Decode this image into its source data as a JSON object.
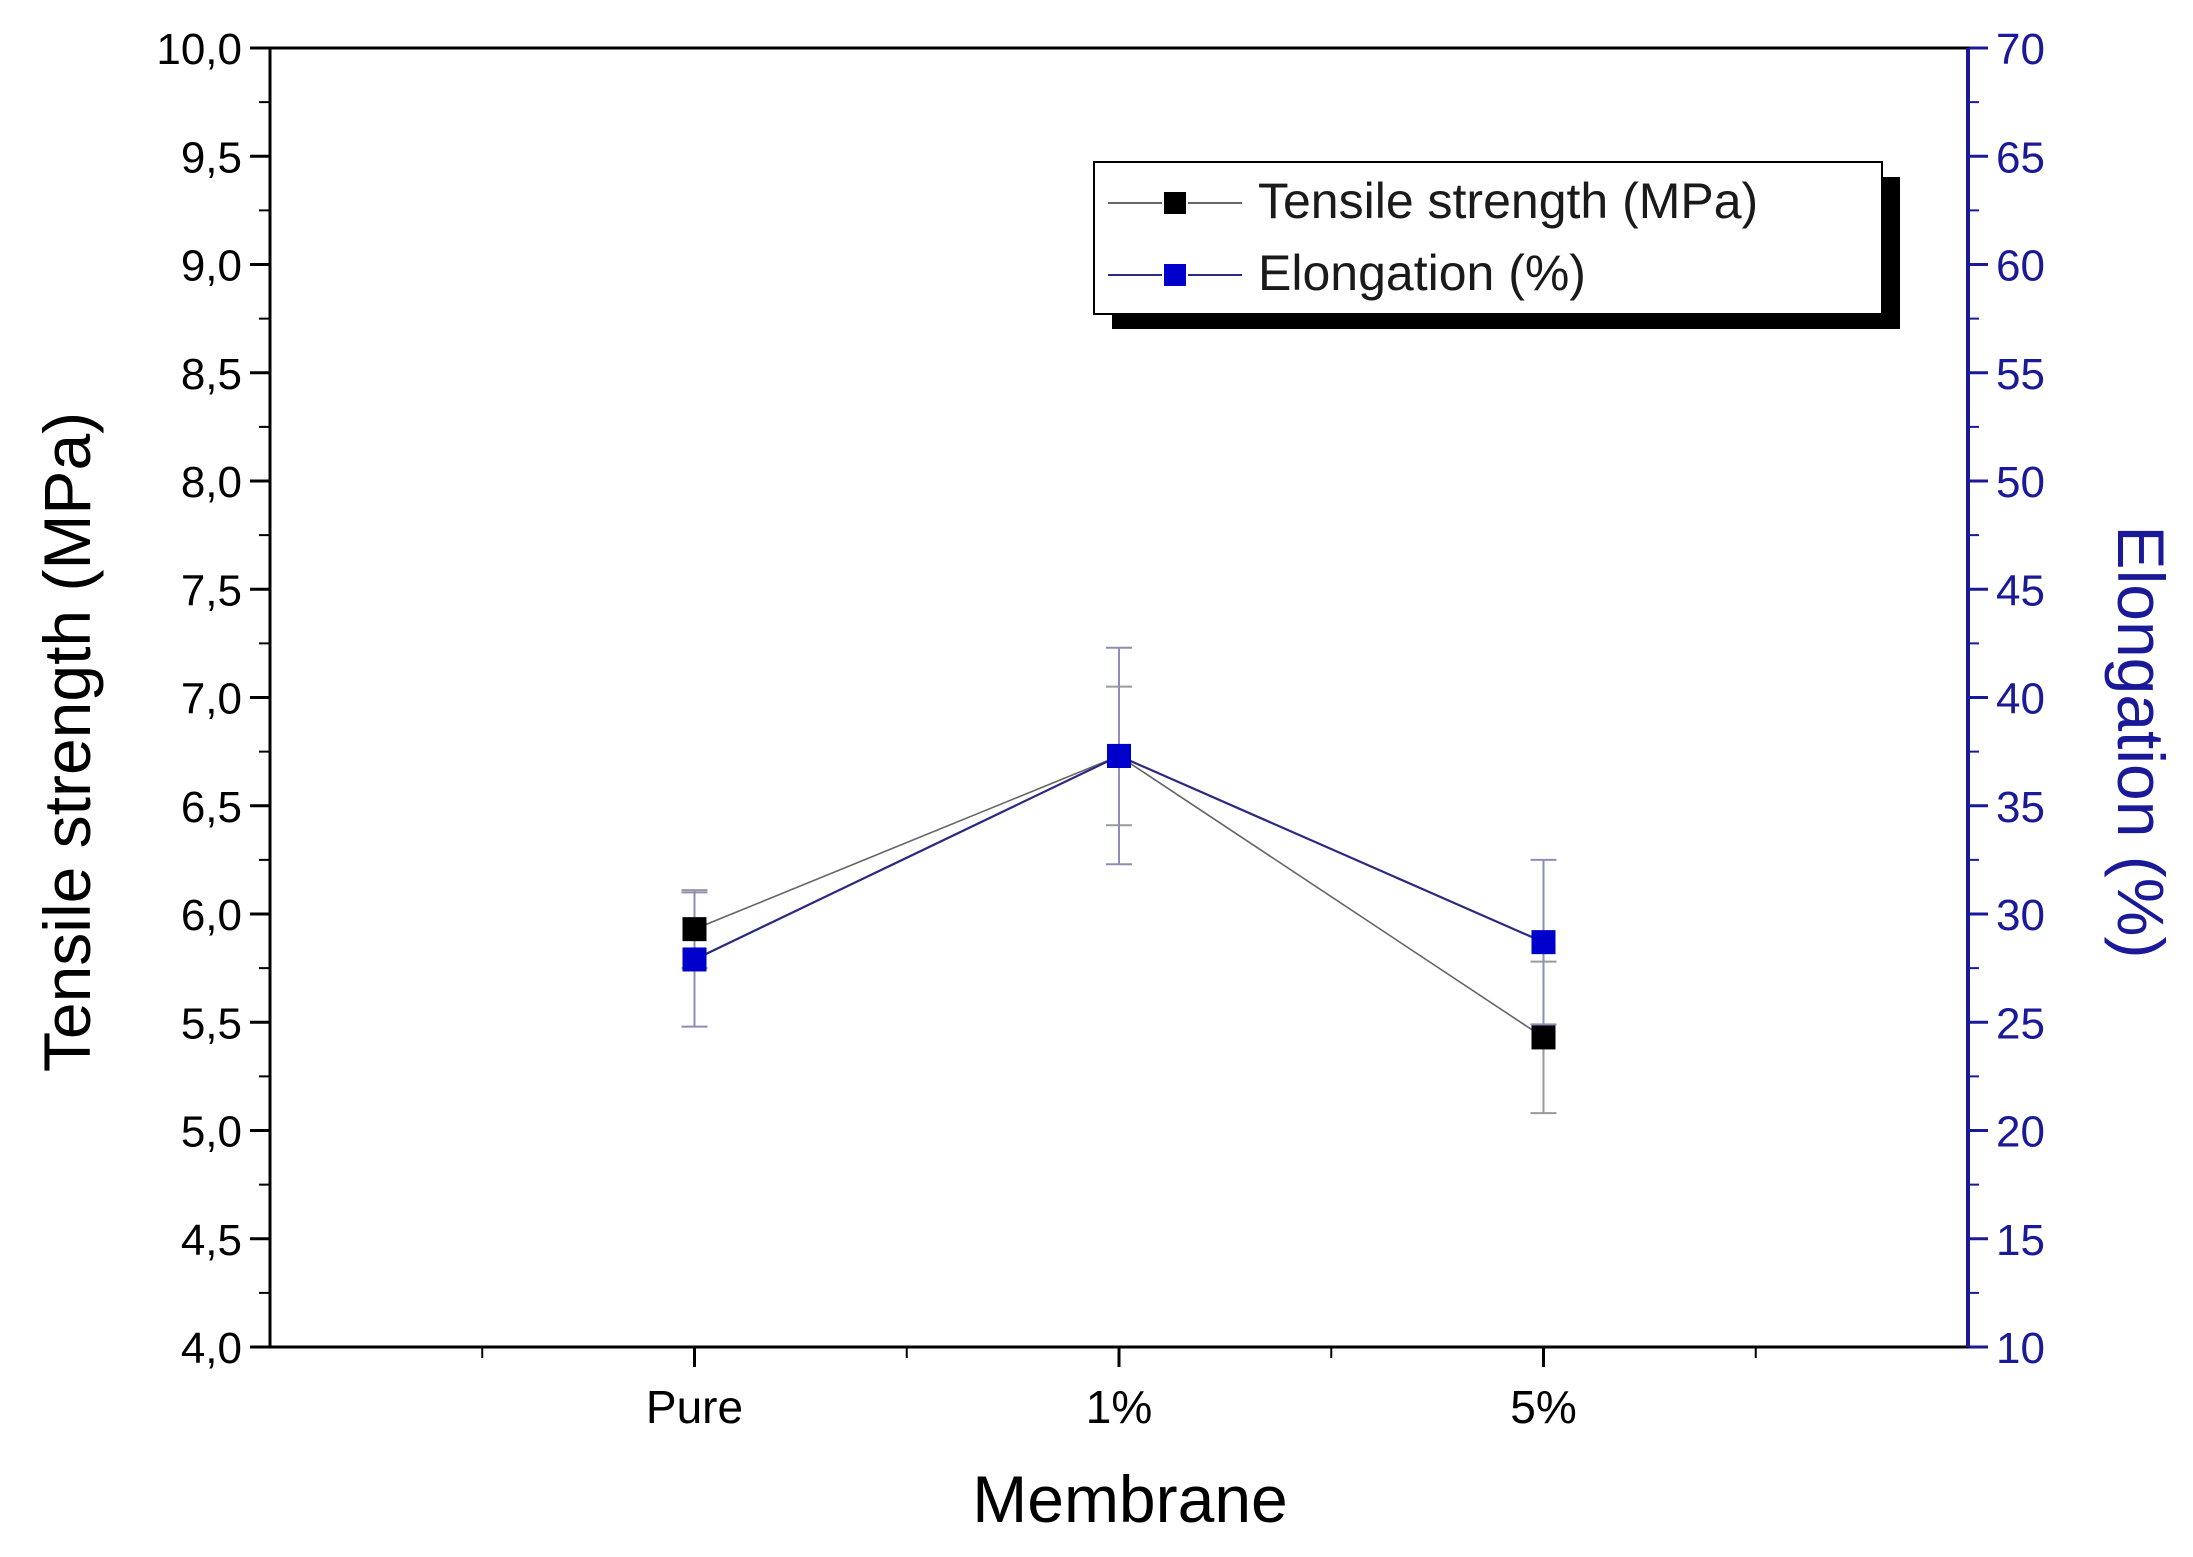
{
  "chart_data": {
    "type": "line",
    "categories": [
      "Pure",
      "1%",
      "5%"
    ],
    "xlabel": "Membrane",
    "ylabel": "Tensile strength (MPa)",
    "y2label": "Elongation (%)",
    "ylim": [
      4.0,
      10.0
    ],
    "y2lim": [
      10,
      70
    ],
    "yticks": [
      "4,0",
      "4,5",
      "5,0",
      "5,5",
      "6,0",
      "6,5",
      "7,0",
      "7,5",
      "8,0",
      "8,5",
      "9,0",
      "9,5",
      "10,0"
    ],
    "y2ticks": [
      "10",
      "15",
      "20",
      "25",
      "30",
      "35",
      "40",
      "45",
      "50",
      "55",
      "60",
      "65",
      "70"
    ],
    "legend_position": "top-right",
    "colors": {
      "tensile": "#000000",
      "elongation": "#0000cc",
      "right_axis": "#1a1a99",
      "tensile_line": "#666666",
      "elongation_line": "#2a2a80"
    },
    "series": [
      {
        "name": "Tensile strength (MPa)",
        "axis": "left",
        "values": [
          5.93,
          6.73,
          5.43
        ],
        "error": [
          0.18,
          0.32,
          0.35
        ]
      },
      {
        "name": "Elongation (%)",
        "axis": "right",
        "values": [
          27.9,
          37.3,
          28.7
        ],
        "error": [
          3.1,
          5.0,
          3.8
        ]
      }
    ]
  }
}
